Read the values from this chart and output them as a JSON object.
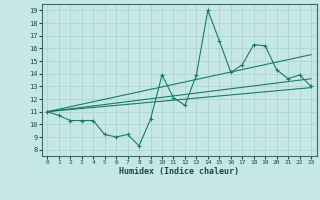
{
  "xlabel": "Humidex (Indice chaleur)",
  "xlim": [
    -0.5,
    23.5
  ],
  "ylim": [
    7.5,
    19.5
  ],
  "xticks": [
    0,
    1,
    2,
    3,
    4,
    5,
    6,
    7,
    8,
    9,
    10,
    11,
    12,
    13,
    14,
    15,
    16,
    17,
    18,
    19,
    20,
    21,
    22,
    23
  ],
  "yticks": [
    8,
    9,
    10,
    11,
    12,
    13,
    14,
    15,
    16,
    17,
    18,
    19
  ],
  "bg_color": "#c5e8e5",
  "grid_color": "#b0d4d0",
  "line_color": "#1a7a6e",
  "main_line_x": [
    0,
    1,
    2,
    3,
    4,
    5,
    6,
    7,
    8,
    9,
    10,
    11,
    12,
    13,
    14,
    15,
    16,
    17,
    18,
    19,
    20,
    21,
    22,
    23
  ],
  "main_line_y": [
    11.0,
    10.7,
    10.3,
    10.3,
    10.3,
    9.2,
    9.0,
    9.2,
    8.3,
    10.4,
    13.9,
    12.1,
    11.5,
    13.9,
    19.0,
    16.6,
    14.1,
    14.7,
    16.3,
    16.2,
    14.3,
    13.6,
    13.9,
    13.0
  ],
  "trend1_x": [
    0,
    23
  ],
  "trend1_y": [
    11.0,
    12.9
  ],
  "trend2_x": [
    0,
    23
  ],
  "trend2_y": [
    11.0,
    15.5
  ],
  "trend3_x": [
    0,
    23
  ],
  "trend3_y": [
    11.0,
    13.6
  ]
}
